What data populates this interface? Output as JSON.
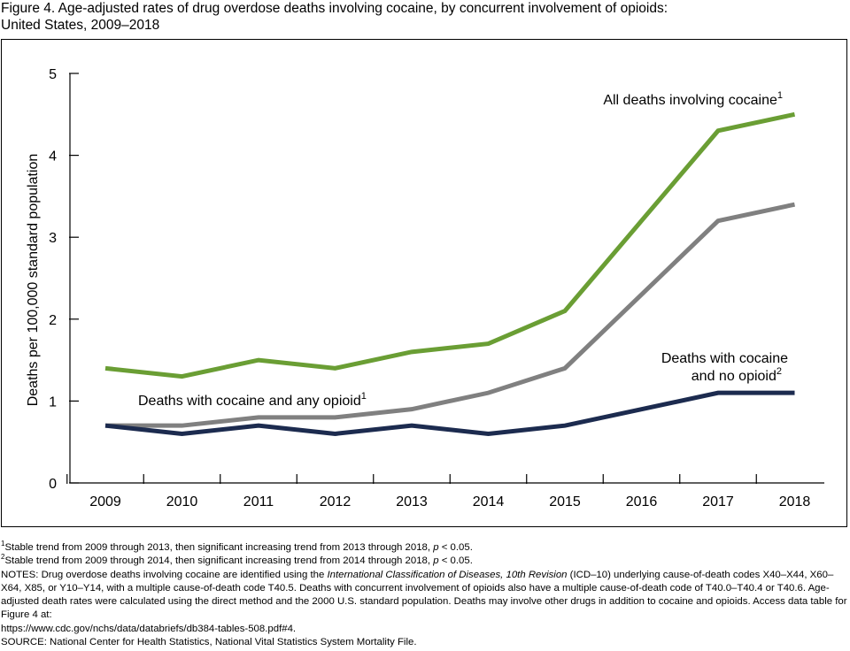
{
  "title": {
    "line1": "Figure 4. Age-adjusted rates of drug overdose deaths involving cocaine, by concurrent involvement of opioids:",
    "line2": "United States, 2009–2018"
  },
  "chart_data": {
    "type": "line",
    "title": "Figure 4. Age-adjusted rates of drug overdose deaths involving cocaine, by concurrent involvement of opioids: United States, 2009–2018",
    "xlabel": "",
    "ylabel": "Deaths per 100,000 standard population",
    "x": [
      "2009",
      "2010",
      "2011",
      "2012",
      "2013",
      "2014",
      "2015",
      "2016",
      "2017",
      "2018"
    ],
    "ylim": [
      0,
      5
    ],
    "yticks": [
      "0",
      "1",
      "2",
      "3",
      "4",
      "5"
    ],
    "grid": false,
    "legend": "direct labels on lines",
    "series": [
      {
        "name": "All deaths involving cocaine",
        "sup": "1",
        "color": "#6a9e34",
        "values": [
          1.4,
          1.3,
          1.5,
          1.4,
          1.6,
          1.7,
          2.1,
          3.2,
          4.3,
          4.5
        ]
      },
      {
        "name": "Deaths with cocaine and any opioid",
        "sup": "1",
        "color": "#808080",
        "values": [
          0.7,
          0.7,
          0.8,
          0.8,
          0.9,
          1.1,
          1.4,
          2.3,
          3.2,
          3.4
        ]
      },
      {
        "name_line1": "Deaths with cocaine",
        "name_line2": "and no opioid",
        "sup": "2",
        "color": "#1c2b4f",
        "values": [
          0.7,
          0.6,
          0.7,
          0.6,
          0.7,
          0.6,
          0.7,
          0.9,
          1.1,
          1.1
        ]
      }
    ]
  },
  "footnotes": {
    "note1_sup": "1",
    "note1_a": "Stable trend from 2009 through 2013, then significant increasing trend from 2013 through 2018, ",
    "note1_p": "p",
    "note1_b": " < 0.05.",
    "note2_sup": "2",
    "note2_a": "Stable trend from 2009 through 2014, then significant increasing trend from 2014 through 2018, ",
    "note2_p": "p",
    "note2_b": " < 0.05.",
    "notes_a": "NOTES: Drug overdose deaths involving cocaine are identified using the ",
    "notes_italic": "International Classification of Diseases, 10th Revision",
    "notes_b": " (ICD–10) underlying cause-of-death codes X40–X44, X60–X64, X85, or Y10–Y14, with a multiple cause-of-death code T40.5. Deaths with concurrent involvement of opioids also have a multiple cause-of-death code of T40.0–T40.4 or T40.6. Age-adjusted death rates were calculated using the direct method and the 2000 U.S. standard population. Deaths may involve other drugs in addition to cocaine and opioids. Access data table for Figure 4 at:",
    "url": "https://www.cdc.gov/nchs/data/databriefs/db384-tables-508.pdf#4.",
    "source": "SOURCE: National Center for Health Statistics, National Vital Statistics System Mortality File."
  }
}
